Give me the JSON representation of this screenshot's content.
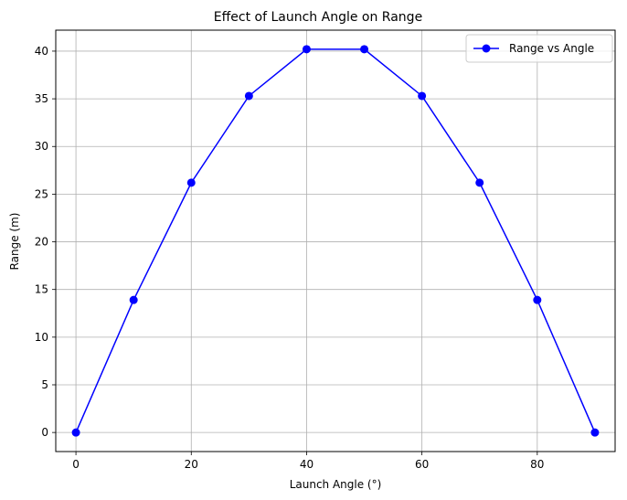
{
  "chart_data": {
    "type": "line",
    "title": "Effect of Launch Angle on Range",
    "xlabel": "Launch Angle (°)",
    "ylabel": "Range (m)",
    "xlim": [
      -3.5,
      93.5
    ],
    "ylim": [
      -2.0,
      42.2
    ],
    "xticks": [
      0,
      20,
      40,
      60,
      80
    ],
    "yticks": [
      0,
      5,
      10,
      15,
      20,
      25,
      30,
      35,
      40
    ],
    "grid": true,
    "legend_position": "top-right",
    "series": [
      {
        "name": "Range vs Angle",
        "color": "#0000ff",
        "marker": "circle",
        "x": [
          0,
          10,
          20,
          30,
          40,
          50,
          60,
          70,
          80,
          90
        ],
        "y": [
          0,
          13.9,
          26.2,
          35.3,
          40.2,
          40.2,
          35.3,
          26.2,
          13.9,
          0
        ]
      }
    ]
  }
}
